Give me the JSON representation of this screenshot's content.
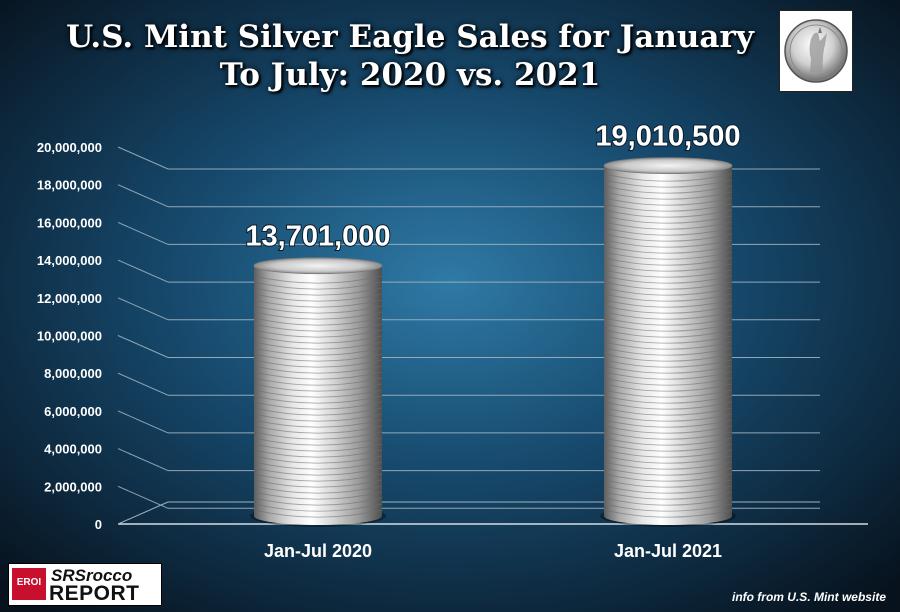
{
  "title_line1": "U.S. Mint Silver Eagle Sales for January",
  "title_line2": "To July:  2020 vs. 2021",
  "coin_icon": "silver-eagle-coin-icon",
  "colors": {
    "background_center": "#2f7aa6",
    "background_edge": "#07121d",
    "grid": "#9fb3c2",
    "text": "#ffffff"
  },
  "chart_data": {
    "type": "bar",
    "title": "U.S. Mint Silver Eagle Sales for January To July:  2020 vs. 2021",
    "categories": [
      "Jan-Jul 2020",
      "Jan-Jul 2021"
    ],
    "values": [
      13701000,
      19010500
    ],
    "data_labels": [
      "13,701,000",
      "19,010,500"
    ],
    "ylim": [
      0,
      20000000
    ],
    "y_ticks": [
      "0",
      "2,000,000",
      "4,000,000",
      "6,000,000",
      "8,000,000",
      "10,000,000",
      "12,000,000",
      "14,000,000",
      "16,000,000",
      "18,000,000",
      "20,000,000"
    ],
    "y_tick_values": [
      0,
      2000000,
      4000000,
      6000000,
      8000000,
      10000000,
      12000000,
      14000000,
      16000000,
      18000000,
      20000000
    ],
    "grid": true,
    "bar_style": "stacked silver coins"
  },
  "logo": {
    "badge": "EROI",
    "line1": "SRSrocco",
    "line2": "REPORT"
  },
  "source_note": "info from U.S. Mint website"
}
